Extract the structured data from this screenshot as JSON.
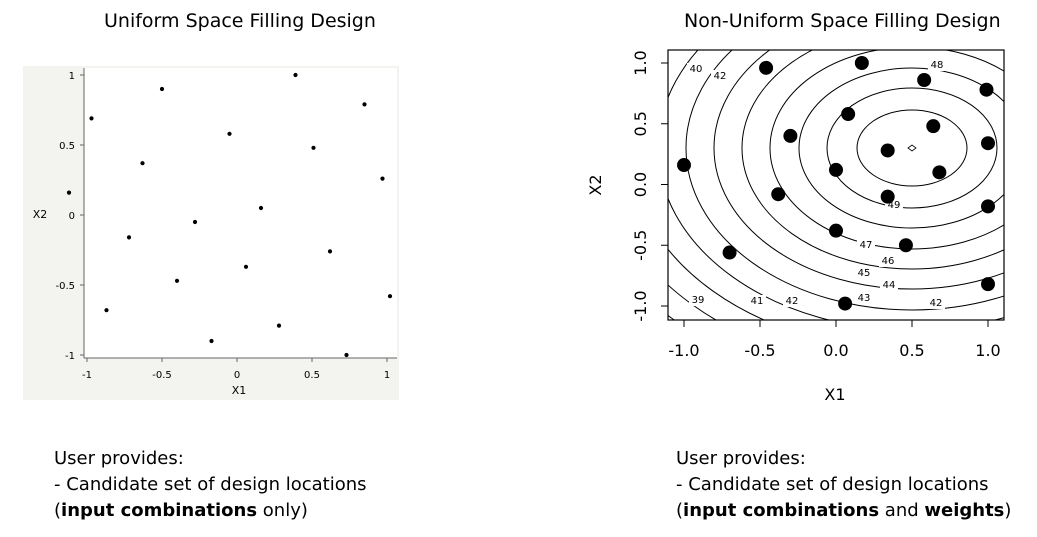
{
  "left_panel": {
    "title": "Uniform Space Filling Design",
    "caption": {
      "line1": "User provides:",
      "line2": "- Candidate set of design locations",
      "line3_open": "(",
      "line3_bold": "input combinations",
      "line3_rest": " only)"
    }
  },
  "right_panel": {
    "title": "Non-Uniform Space Filling Design",
    "caption": {
      "line1": "User provides:",
      "line2": "- Candidate set of design locations",
      "line3_open": "(",
      "line3_bold1": "input combinations",
      "line3_mid": " and ",
      "line3_bold2": "weights",
      "line3_close": ")"
    }
  },
  "chart_data": [
    {
      "type": "scatter",
      "title": "Uniform Space Filling Design",
      "xlabel": "X1",
      "ylabel": "X2",
      "xlim": [
        -1,
        1
      ],
      "ylim": [
        -1,
        1
      ],
      "xticks": [
        -1,
        -0.5,
        0,
        0.5,
        1
      ],
      "yticks": [
        -1,
        -0.5,
        0,
        0.5,
        1
      ],
      "xtick_labels": [
        "-1",
        "-0.5",
        "0",
        "0.5",
        "1"
      ],
      "ytick_labels": [
        "-1",
        "-0.5",
        "0",
        "0.5",
        "1"
      ],
      "background": "#f3f3ef",
      "points": [
        [
          0.39,
          1.0
        ],
        [
          -0.5,
          0.9
        ],
        [
          0.85,
          0.79
        ],
        [
          -0.97,
          0.69
        ],
        [
          -0.05,
          0.58
        ],
        [
          0.51,
          0.48
        ],
        [
          -0.63,
          0.37
        ],
        [
          0.97,
          0.26
        ],
        [
          -1.12,
          0.16
        ],
        [
          0.16,
          0.05
        ],
        [
          -0.28,
          -0.05
        ],
        [
          -0.72,
          -0.16
        ],
        [
          0.62,
          -0.26
        ],
        [
          0.06,
          -0.37
        ],
        [
          -0.4,
          -0.47
        ],
        [
          1.02,
          -0.58
        ],
        [
          -0.87,
          -0.68
        ],
        [
          0.28,
          -0.79
        ],
        [
          -0.17,
          -0.9
        ],
        [
          0.73,
          -1.0
        ]
      ]
    },
    {
      "type": "scatter",
      "title": "Non-Uniform Space Filling Design",
      "xlabel": "X1",
      "ylabel": "X2",
      "xlim": [
        -1,
        1
      ],
      "ylim": [
        -1,
        1
      ],
      "xticks": [
        -1,
        -0.5,
        0,
        0.5,
        1
      ],
      "yticks": [
        -1,
        -0.5,
        0,
        0.5,
        1
      ],
      "xtick_labels": [
        "-1.0",
        "-0.5",
        "0.0",
        "0.5",
        "1.0"
      ],
      "ytick_labels": [
        "-1.0",
        "-0.5",
        "0.0",
        "0.5",
        "1.0"
      ],
      "contour_labels": [
        "39",
        "40",
        "41",
        "42",
        "42",
        "42",
        "43",
        "44",
        "45",
        "46",
        "47",
        "48",
        "49"
      ],
      "points": [
        [
          0.17,
          1.0
        ],
        [
          -0.46,
          0.96
        ],
        [
          0.58,
          0.86
        ],
        [
          0.99,
          0.78
        ],
        [
          0.08,
          0.58
        ],
        [
          0.64,
          0.48
        ],
        [
          -0.3,
          0.4
        ],
        [
          1.0,
          0.34
        ],
        [
          0.34,
          0.28
        ],
        [
          0.68,
          0.1
        ],
        [
          -1.0,
          0.16
        ],
        [
          0.0,
          0.12
        ],
        [
          -0.38,
          -0.08
        ],
        [
          0.34,
          -0.1
        ],
        [
          1.0,
          -0.18
        ],
        [
          0.0,
          -0.38
        ],
        [
          0.46,
          -0.5
        ],
        [
          -0.7,
          -0.56
        ],
        [
          1.0,
          -0.82
        ],
        [
          0.06,
          -0.98
        ]
      ]
    }
  ]
}
